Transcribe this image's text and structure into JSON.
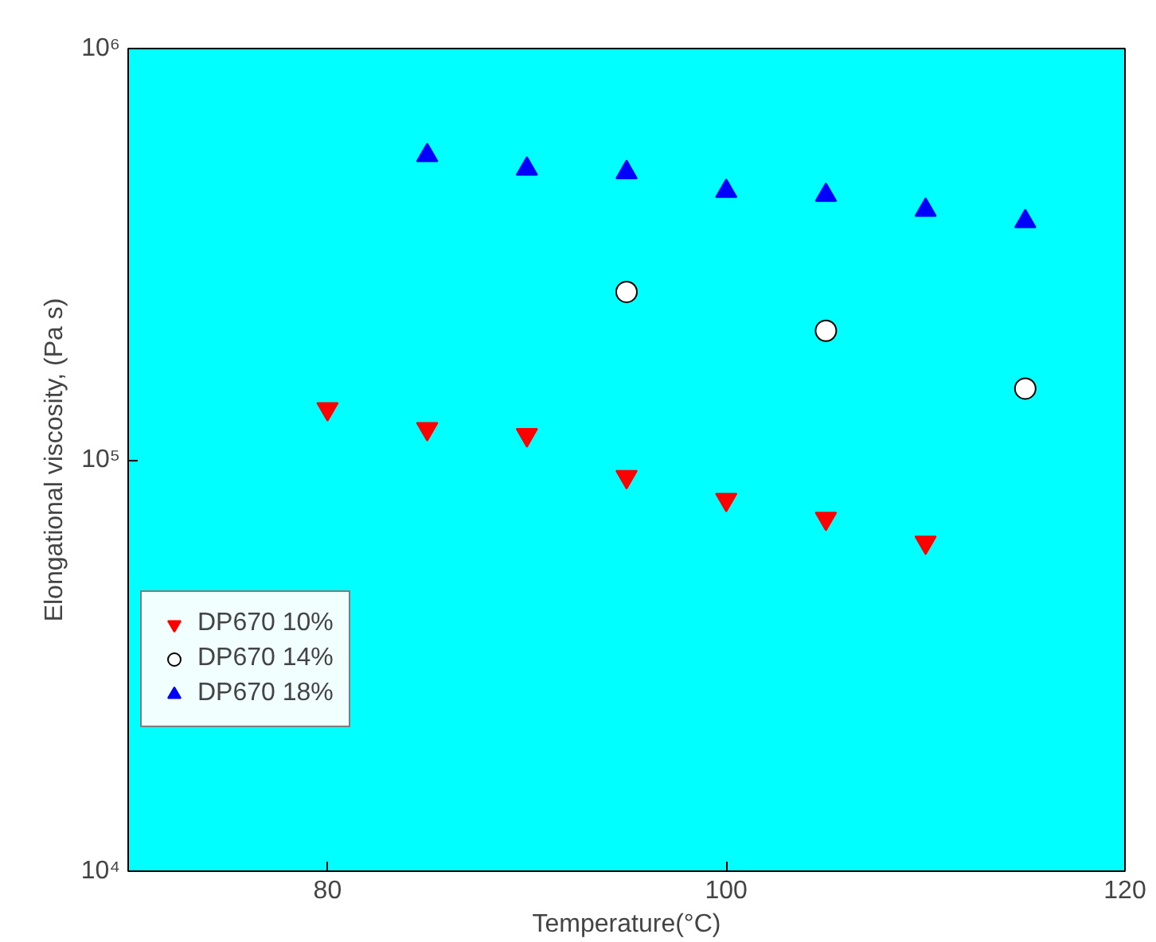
{
  "chart_data": {
    "type": "scatter",
    "xlabel": "Temperature(°C)",
    "ylabel": "Elongational viscosity, (Pa s)",
    "x": [
      80,
      85,
      90,
      95,
      100,
      105,
      110,
      115
    ],
    "series": [
      {
        "name": "DP670 10%",
        "color": "#ff0000",
        "marker": "triangle_down",
        "values": [
          133000,
          119000,
          115000,
          91000,
          80000,
          72000,
          63000,
          null
        ]
      },
      {
        "name": "DP670 14%",
        "color": "#ffffff",
        "marker": "circle",
        "values": [
          null,
          null,
          null,
          256000,
          null,
          206000,
          null,
          149000
        ]
      },
      {
        "name": "DP670 18%",
        "color": "#0000ff",
        "marker": "triangle",
        "values": [
          null,
          550000,
          510000,
          500000,
          450000,
          440000,
          405000,
          380000
        ]
      }
    ],
    "xlim": [
      70,
      120
    ],
    "xticks": [
      80,
      100,
      120
    ],
    "ylim": [
      10000,
      1000000
    ],
    "yticks": [
      {
        "value": 10000,
        "label": "10⁴"
      },
      {
        "value": 100000,
        "label": "10⁵"
      },
      {
        "value": 1000000,
        "label": "10⁶"
      }
    ],
    "log": "y",
    "grid": false,
    "legend": "left"
  }
}
